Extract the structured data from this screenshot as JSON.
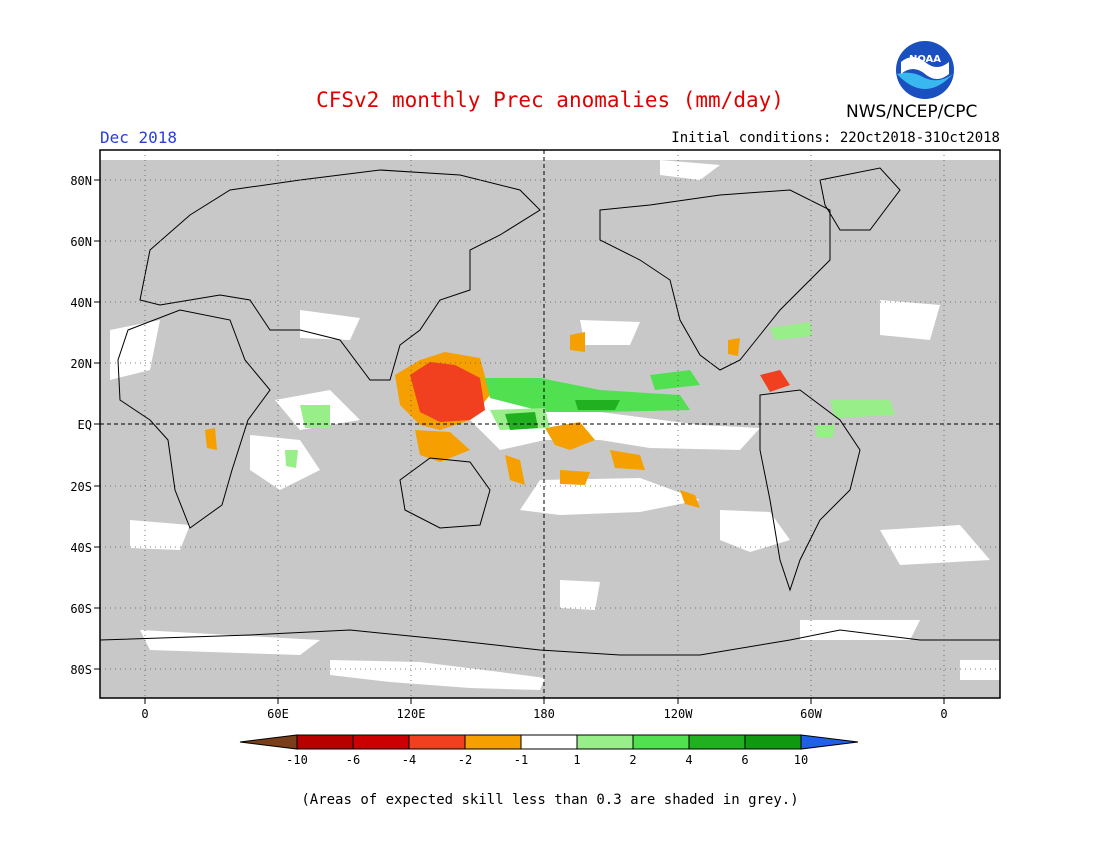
{
  "header": {
    "title": "CFSv2 monthly Prec anomalies (mm/day)",
    "month": "Dec 2018",
    "initial_conditions": "Initial conditions: 22Oct2018-31Oct2018",
    "agency": "NWS/NCEP/CPC",
    "logo_text": "NOAA"
  },
  "map": {
    "lat_labels": [
      "80N",
      "60N",
      "40N",
      "20N",
      "EQ",
      "20S",
      "40S",
      "60S",
      "80S"
    ],
    "lon_labels": [
      "0",
      "60E",
      "120E",
      "180",
      "120W",
      "60W",
      "0"
    ],
    "background_color": "#c8c8c8"
  },
  "colorbar": {
    "labels": [
      "-10",
      "-6",
      "-4",
      "-2",
      "-1",
      "1",
      "2",
      "4",
      "6",
      "10"
    ],
    "colors": [
      "#7a3f1a",
      "#b80000",
      "#cc0000",
      "#f04020",
      "#f5a000",
      "#ffffff",
      "#98ee88",
      "#50e050",
      "#20b020",
      "#109810",
      "#2060e8"
    ]
  },
  "footnote": "(Areas of expected skill less than 0.3 are shaded in grey.)"
}
